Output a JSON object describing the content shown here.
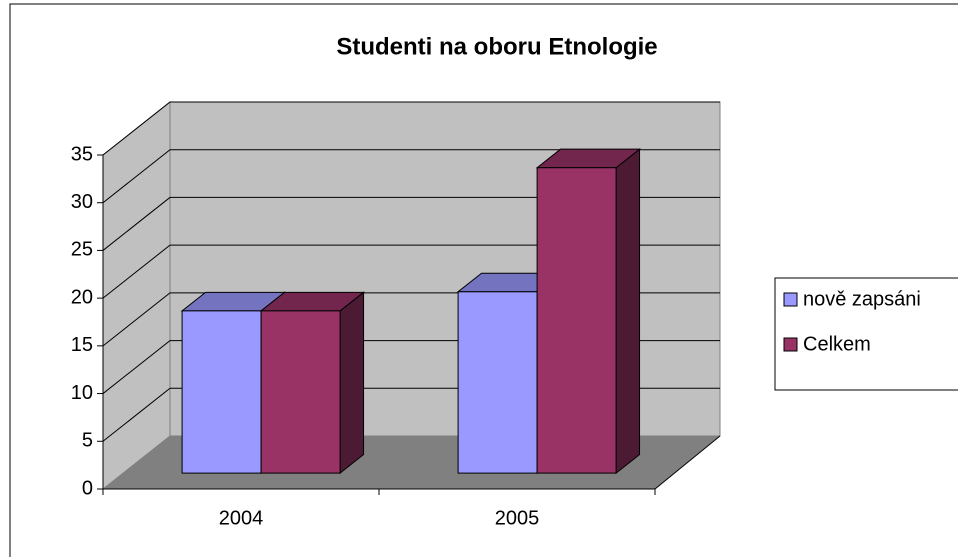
{
  "chart_data": {
    "type": "bar3d",
    "title": "Studenti na oboru Etnologie",
    "categories": [
      "2004",
      "2005"
    ],
    "series": [
      {
        "name": "nově zapsáni",
        "color": "#9999ff",
        "values": [
          17,
          19
        ]
      },
      {
        "name": "Celkem",
        "color": "#993366",
        "values": [
          17,
          32
        ]
      }
    ],
    "ylim": [
      0,
      35
    ],
    "yticks": [
      0,
      5,
      10,
      15,
      20,
      25,
      30,
      35
    ],
    "grid": true,
    "legend": "right"
  }
}
